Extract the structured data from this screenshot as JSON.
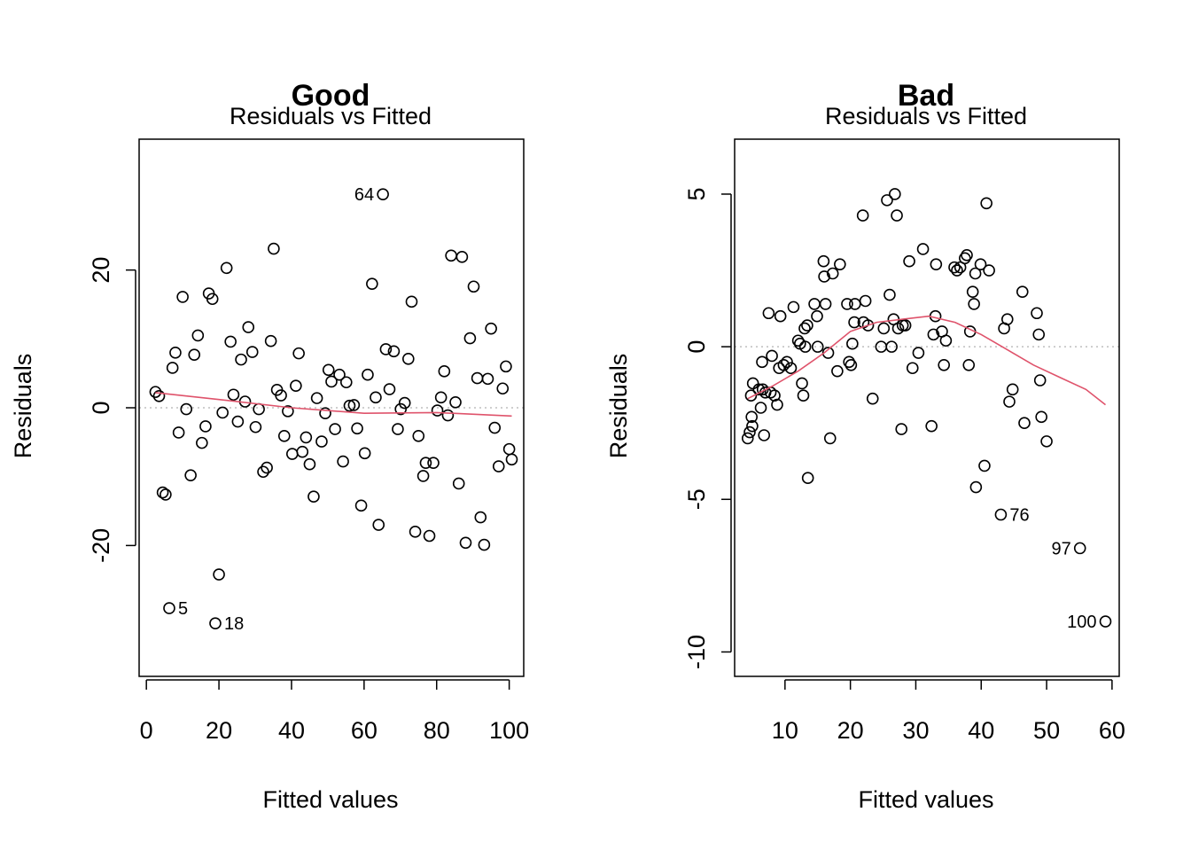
{
  "figure": {
    "background": "#ffffff",
    "point_color": "#000000",
    "smooth_color": "#DF536B",
    "zero_line_color": "#BEBEBE"
  },
  "chart_data": [
    {
      "type": "scatter",
      "title": "Good",
      "subtitle": "Residuals vs Fitted",
      "xlabel": "Fitted values",
      "ylabel": "Residuals",
      "xlim": [
        -2,
        104
      ],
      "ylim": [
        -39,
        39
      ],
      "xticks": [
        0,
        20,
        40,
        60,
        80,
        100
      ],
      "yticks": [
        -20,
        0,
        20
      ],
      "zero_line": true,
      "x": [
        2.5,
        3.5,
        4.5,
        5.3,
        6.3,
        7.2,
        8.0,
        8.9,
        10.0,
        11.0,
        12.2,
        13.2,
        14.2,
        15.3,
        16.3,
        17.2,
        18.2,
        19.0,
        20.0,
        21.0,
        22.1,
        23.2,
        24.0,
        25.2,
        26.1,
        27.2,
        28.1,
        29.2,
        30.1,
        31.0,
        32.2,
        33.2,
        34.3,
        35.1,
        36.0,
        37.1,
        38.0,
        39.0,
        40.2,
        41.2,
        42.0,
        43.0,
        44.0,
        45.0,
        46.1,
        47.0,
        48.3,
        49.3,
        50.2,
        51.0,
        52.0,
        53.2,
        54.2,
        55.1,
        56.0,
        57.2,
        58.1,
        59.2,
        60.2,
        61.0,
        62.2,
        63.2,
        64.0,
        65.2,
        66.0,
        67.0,
        68.2,
        69.3,
        70.1,
        71.2,
        72.2,
        73.1,
        74.1,
        75.0,
        76.3,
        77.0,
        78.0,
        79.1,
        80.2,
        81.2,
        82.1,
        83.1,
        84.0,
        85.2,
        86.1,
        87.0,
        88.0,
        89.2,
        90.2,
        91.2,
        92.1,
        93.1,
        94.1,
        95.0,
        96.0,
        97.1,
        98.2,
        99.1,
        100.0,
        100.7
      ],
      "y": [
        2.3,
        1.7,
        -12.3,
        -12.6,
        -29.1,
        5.8,
        8.0,
        -3.6,
        16.1,
        -0.2,
        -9.8,
        7.7,
        10.5,
        -5.1,
        -2.7,
        16.6,
        15.8,
        -31.3,
        -24.2,
        -0.7,
        20.3,
        9.6,
        1.9,
        -2.0,
        7.0,
        0.9,
        11.7,
        8.1,
        -2.8,
        -0.2,
        -9.3,
        -8.7,
        9.7,
        23.1,
        2.6,
        1.8,
        -4.1,
        -0.5,
        -6.7,
        3.2,
        7.9,
        -6.4,
        -4.3,
        -8.2,
        -12.9,
        1.4,
        -4.9,
        -0.8,
        5.5,
        3.8,
        -3.1,
        4.8,
        -7.8,
        3.7,
        0.3,
        0.4,
        -3.0,
        -14.2,
        -6.6,
        4.8,
        18.0,
        1.5,
        -17.0,
        31.0,
        8.5,
        2.7,
        8.2,
        -3.1,
        -0.2,
        0.7,
        7.1,
        15.4,
        -18.0,
        -4.1,
        -9.9,
        -8.0,
        -18.6,
        -8.0,
        -0.4,
        1.5,
        5.3,
        -1.1,
        22.1,
        0.8,
        -11.0,
        21.9,
        -19.6,
        10.1,
        17.6,
        4.3,
        -15.9,
        -19.9,
        4.2,
        11.5,
        -2.9,
        -8.5,
        2.8,
        6.0,
        -6.0,
        -7.5
      ],
      "point_labels": [
        {
          "index": 63,
          "text": "64",
          "side": "left"
        },
        {
          "index": 4,
          "text": "5",
          "side": "right"
        },
        {
          "index": 17,
          "text": "18",
          "side": "right"
        }
      ],
      "smooth": {
        "x": [
          2.5,
          20,
          40,
          60,
          80,
          100.7
        ],
        "y": [
          2.2,
          1.2,
          0.0,
          -0.8,
          -0.7,
          -1.2
        ]
      }
    },
    {
      "type": "scatter",
      "title": "Bad",
      "subtitle": "Residuals vs Fitted",
      "xlabel": "Fitted values",
      "ylabel": "Residuals",
      "xlim": [
        2.3,
        61.1
      ],
      "ylim": [
        -10.8,
        6.8
      ],
      "xticks": [
        10,
        20,
        30,
        40,
        50,
        60
      ],
      "yticks": [
        -10,
        -5,
        0,
        5
      ],
      "zero_line": true,
      "x": [
        4.3,
        4.6,
        4.8,
        4.9,
        5.0,
        5.1,
        6.0,
        6.3,
        6.5,
        6.6,
        6.8,
        7.0,
        7.5,
        7.8,
        8.0,
        8.4,
        8.8,
        9.1,
        9.3,
        9.8,
        10.3,
        10.9,
        11.3,
        12.0,
        12.3,
        12.6,
        12.8,
        13.0,
        13.1,
        13.4,
        13.5,
        14.5,
        14.9,
        15.0,
        15.9,
        16.0,
        16.2,
        16.6,
        16.9,
        17.3,
        18.0,
        18.4,
        19.5,
        19.8,
        20.1,
        20.3,
        20.6,
        20.7,
        21.9,
        22.0,
        22.3,
        22.7,
        23.4,
        24.7,
        25.1,
        25.6,
        26.0,
        26.3,
        26.6,
        26.8,
        27.1,
        27.3,
        27.8,
        28.0,
        28.4,
        29.0,
        29.5,
        30.4,
        31.1,
        32.4,
        32.7,
        33.0,
        33.1,
        34.0,
        34.3,
        34.6,
        35.9,
        36.3,
        36.8,
        37.5,
        37.8,
        38.1,
        38.3,
        38.7,
        38.9,
        39.1,
        39.2,
        39.9,
        40.5,
        40.8,
        41.2,
        43.0,
        43.5,
        44.0,
        44.3,
        44.8,
        46.3,
        46.6,
        48.5,
        48.8,
        49.0,
        49.2,
        50.0,
        55.1,
        59.0
      ],
      "y": [
        -3.0,
        -2.8,
        -1.6,
        -2.3,
        -2.6,
        -1.2,
        -1.4,
        -2.0,
        -0.5,
        -1.4,
        -2.9,
        -1.5,
        1.1,
        -1.5,
        -0.3,
        -1.6,
        -1.9,
        -0.7,
        1.0,
        -0.6,
        -0.5,
        -0.7,
        1.3,
        0.2,
        0.1,
        -1.2,
        -1.6,
        0.6,
        0.0,
        0.7,
        -4.3,
        1.4,
        1.0,
        0.0,
        2.8,
        2.3,
        1.4,
        -0.2,
        -3.0,
        2.4,
        -0.8,
        2.7,
        1.4,
        -0.5,
        -0.6,
        0.1,
        0.8,
        1.4,
        4.3,
        0.8,
        1.5,
        0.7,
        -1.7,
        0.0,
        0.6,
        4.8,
        1.7,
        0.0,
        0.9,
        5.0,
        4.3,
        0.6,
        -2.7,
        0.7,
        0.7,
        2.8,
        -0.7,
        -0.2,
        3.2,
        -2.6,
        0.4,
        1.0,
        2.7,
        0.5,
        -0.6,
        0.2,
        2.6,
        2.5,
        2.6,
        2.9,
        3.0,
        -0.6,
        0.5,
        1.8,
        1.4,
        2.4,
        -4.6,
        2.7,
        -3.9,
        4.7,
        2.5,
        -5.5,
        0.6,
        0.9,
        -1.8,
        -1.4,
        1.8,
        -2.5,
        1.1,
        0.4,
        -1.1,
        -2.3,
        -3.1,
        -6.6,
        -9.0
      ],
      "point_labels": [
        {
          "index": 91,
          "text": "76",
          "side": "right"
        },
        {
          "index": 103,
          "text": "97",
          "side": "left"
        },
        {
          "index": 104,
          "text": "100",
          "side": "left"
        }
      ],
      "smooth": {
        "x": [
          4.3,
          8,
          12,
          16,
          20,
          24,
          28,
          32,
          36,
          40,
          44,
          48,
          52,
          56,
          59
        ],
        "y": [
          -1.7,
          -1.3,
          -0.8,
          -0.2,
          0.5,
          0.8,
          0.9,
          1.0,
          0.8,
          0.4,
          -0.1,
          -0.6,
          -1.0,
          -1.4,
          -1.9
        ]
      }
    }
  ]
}
